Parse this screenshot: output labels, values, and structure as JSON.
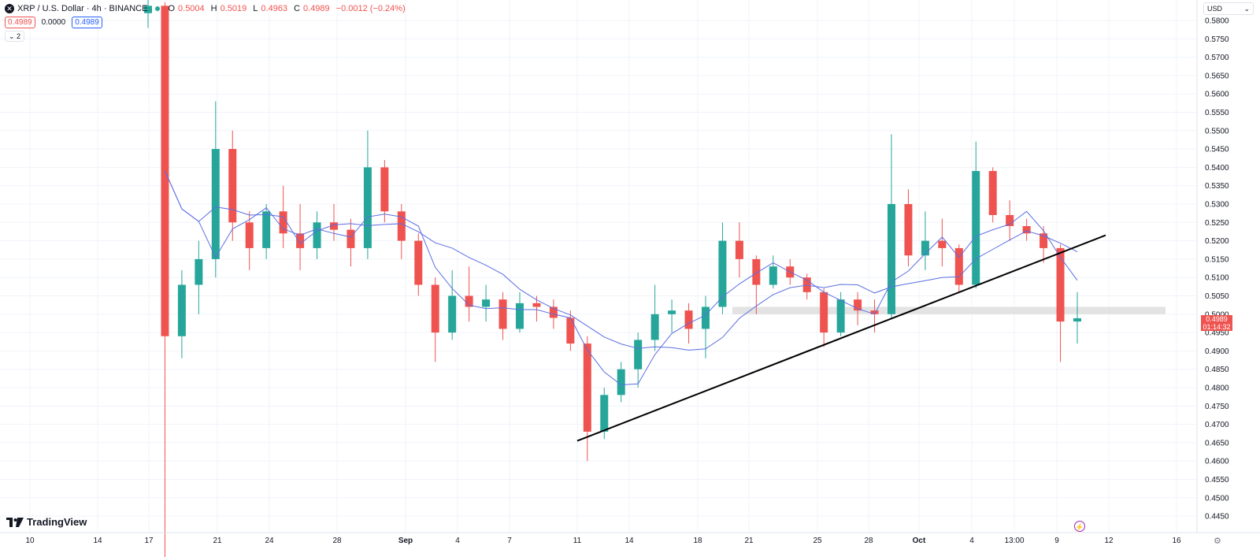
{
  "legend": {
    "symbol": "XRP / U.S. Dollar · 4h · BINANCE",
    "open_label": "O",
    "open": "0.5004",
    "high_label": "H",
    "high": "0.5019",
    "low_label": "L",
    "low": "0.4963",
    "close_label": "C",
    "close": "0.4989",
    "change": "−0.0012 (−0.24%)",
    "bid": "0.4989",
    "spread": "0.0000",
    "ask": "0.4989",
    "collapse_count": "2"
  },
  "currency": "USD",
  "last_price": {
    "price": "0.4989",
    "countdown": "01:14:32"
  },
  "brand": "TradingView",
  "colors": {
    "up": "#26a69a",
    "down": "#ef5350",
    "ma": "#5b6ee1",
    "trendline": "#000000",
    "band": "#e0e0e0"
  },
  "chart_data": {
    "type": "candlestick",
    "symbol": "XRP / U.S. Dollar",
    "interval": "4h",
    "exchange": "BINANCE",
    "x_tick_labels": [
      "10",
      "14",
      "17",
      "21",
      "24",
      "28",
      "Sep",
      "4",
      "7",
      "11",
      "14",
      "18",
      "21",
      "25",
      "28",
      "Oct",
      "4",
      "13:00",
      "9",
      "12",
      "16"
    ],
    "y_tick_labels": [
      "0.5800",
      "0.5750",
      "0.5700",
      "0.5650",
      "0.5600",
      "0.5550",
      "0.5500",
      "0.5450",
      "0.5400",
      "0.5350",
      "0.5300",
      "0.5250",
      "0.5200",
      "0.5150",
      "0.5100",
      "0.5050",
      "0.5000",
      "0.4950",
      "0.4900",
      "0.4850",
      "0.4800",
      "0.4750",
      "0.4700",
      "0.4650",
      "0.4600",
      "0.4550",
      "0.4500",
      "0.4450"
    ],
    "ylim": [
      0.4425,
      0.5835
    ],
    "candles_approx": [
      [
        "Aug 17",
        0.582,
        0.586,
        0.578,
        0.584
      ],
      [
        "Aug 17",
        0.584,
        0.585,
        0.433,
        0.494
      ],
      [
        "Aug 18",
        0.494,
        0.512,
        0.488,
        0.508
      ],
      [
        "Aug 19",
        0.508,
        0.52,
        0.5,
        0.515
      ],
      [
        "Aug 20",
        0.515,
        0.558,
        0.51,
        0.545
      ],
      [
        "Aug 21",
        0.545,
        0.55,
        0.52,
        0.525
      ],
      [
        "Aug 22",
        0.525,
        0.528,
        0.512,
        0.518
      ],
      [
        "Aug 23",
        0.518,
        0.53,
        0.515,
        0.528
      ],
      [
        "Aug 24",
        0.528,
        0.535,
        0.518,
        0.522
      ],
      [
        "Aug 25",
        0.522,
        0.53,
        0.512,
        0.518
      ],
      [
        "Aug 26",
        0.518,
        0.528,
        0.515,
        0.525
      ],
      [
        "Aug 27",
        0.525,
        0.53,
        0.52,
        0.523
      ],
      [
        "Aug 28",
        0.523,
        0.526,
        0.513,
        0.518
      ],
      [
        "Aug 29",
        0.518,
        0.55,
        0.515,
        0.54
      ],
      [
        "Aug 30",
        0.54,
        0.542,
        0.525,
        0.528
      ],
      [
        "Aug 31",
        0.528,
        0.53,
        0.515,
        0.52
      ],
      [
        "Sep 1",
        0.52,
        0.522,
        0.505,
        0.508
      ],
      [
        "Sep 2",
        0.508,
        0.51,
        0.487,
        0.495
      ],
      [
        "Sep 3",
        0.495,
        0.512,
        0.493,
        0.505
      ],
      [
        "Sep 4",
        0.505,
        0.513,
        0.498,
        0.502
      ],
      [
        "Sep 5",
        0.502,
        0.508,
        0.498,
        0.504
      ],
      [
        "Sep 6",
        0.504,
        0.506,
        0.493,
        0.496
      ],
      [
        "Sep 7",
        0.496,
        0.506,
        0.495,
        0.503
      ],
      [
        "Sep 8",
        0.503,
        0.505,
        0.498,
        0.502
      ],
      [
        "Sep 9",
        0.502,
        0.504,
        0.496,
        0.499
      ],
      [
        "Sep 10",
        0.499,
        0.501,
        0.49,
        0.492
      ],
      [
        "Sep 11",
        0.492,
        0.494,
        0.46,
        0.468
      ],
      [
        "Sep 12",
        0.468,
        0.48,
        0.466,
        0.478
      ],
      [
        "Sep 13",
        0.478,
        0.487,
        0.476,
        0.485
      ],
      [
        "Sep 14",
        0.485,
        0.495,
        0.48,
        0.493
      ],
      [
        "Sep 15",
        0.493,
        0.508,
        0.49,
        0.5
      ],
      [
        "Sep 16",
        0.5,
        0.504,
        0.495,
        0.501
      ],
      [
        "Sep 17",
        0.501,
        0.503,
        0.492,
        0.496
      ],
      [
        "Sep 18",
        0.496,
        0.505,
        0.488,
        0.502
      ],
      [
        "Sep 19",
        0.502,
        0.525,
        0.5,
        0.52
      ],
      [
        "Sep 20",
        0.52,
        0.525,
        0.51,
        0.515
      ],
      [
        "Sep 21",
        0.515,
        0.516,
        0.5,
        0.508
      ],
      [
        "Sep 22",
        0.508,
        0.516,
        0.507,
        0.513
      ],
      [
        "Sep 23",
        0.513,
        0.515,
        0.508,
        0.51
      ],
      [
        "Sep 24",
        0.51,
        0.511,
        0.504,
        0.506
      ],
      [
        "Sep 25",
        0.506,
        0.507,
        0.491,
        0.495
      ],
      [
        "Sep 26",
        0.495,
        0.506,
        0.494,
        0.504
      ],
      [
        "Sep 27",
        0.504,
        0.506,
        0.497,
        0.501
      ],
      [
        "Sep 28",
        0.501,
        0.504,
        0.495,
        0.5
      ],
      [
        "Sep 29",
        0.5,
        0.549,
        0.499,
        0.53
      ],
      [
        "Sep 30",
        0.53,
        0.534,
        0.513,
        0.516
      ],
      [
        "Oct 1",
        0.516,
        0.528,
        0.512,
        0.52
      ],
      [
        "Oct 2",
        0.52,
        0.526,
        0.513,
        0.518
      ],
      [
        "Oct 3",
        0.518,
        0.519,
        0.506,
        0.508
      ],
      [
        "Oct 4",
        0.508,
        0.547,
        0.507,
        0.539
      ],
      [
        "Oct 5",
        0.539,
        0.54,
        0.525,
        0.527
      ],
      [
        "Oct 6",
        0.527,
        0.531,
        0.52,
        0.524
      ],
      [
        "Oct 7",
        0.524,
        0.526,
        0.52,
        0.522
      ],
      [
        "Oct 8",
        0.522,
        0.524,
        0.514,
        0.518
      ],
      [
        "Oct 9",
        0.518,
        0.519,
        0.487,
        0.498
      ],
      [
        "Oct 10",
        0.498,
        0.506,
        0.492,
        0.4989
      ]
    ],
    "moving_averages": [
      {
        "name": "",
        "note": "faster moving average (blue)"
      },
      {
        "name": "",
        "note": "slower moving average (blue)"
      }
    ],
    "trendline": {
      "from": [
        "Sep 11",
        0.4655
      ],
      "to": [
        "Oct 11",
        0.5215
      ]
    },
    "horizontal_zone": {
      "from": [
        "Sep 20",
        0.5
      ],
      "to": [
        "Oct 15",
        0.502
      ]
    },
    "grid": true,
    "legend_position": "top-left"
  }
}
